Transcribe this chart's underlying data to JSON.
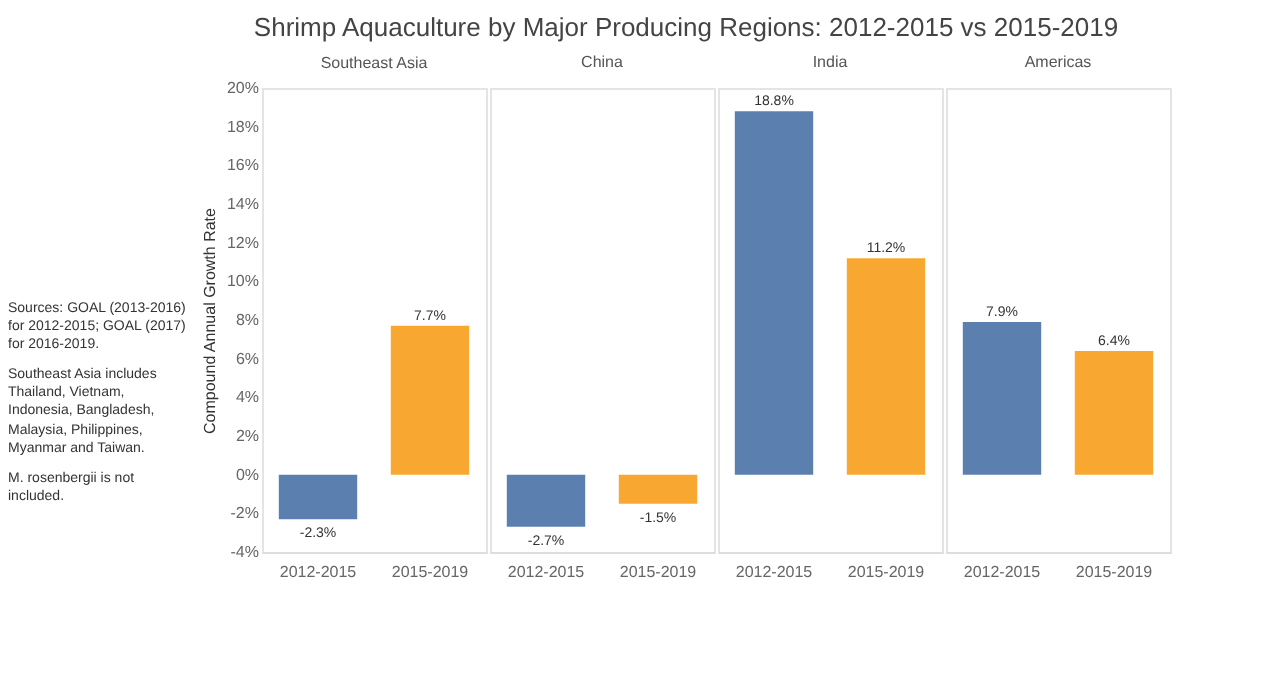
{
  "chart_data": [
    {
      "type": "bar",
      "title": "Shrimp Aquaculture by Major Producing Regions: 2012-2015 vs 2015-2019",
      "subtitle": "Southeast Asia",
      "ylabel": "Compound Annual Growth Rate",
      "annotations": [
        "Sources: GOAL (2013-2016) for 2012-2015; GOAL (2017) for 2016-2019.",
        "Southeast Asia includes Thailand, Vietnam, Indonesia, Bangladesh, Malaysia, Philippines, Myanmar and Taiwan.",
        "M. rosenbergii is not included."
      ],
      "categories": [
        "2012-2015",
        "2015-2019"
      ],
      "values": [
        -2.3,
        7.7
      ],
      "colors": [
        "#5b7fae",
        "#f8a830"
      ],
      "value_labels": [
        "-2.3%",
        "7.7%"
      ],
      "ylim": [
        -4,
        20
      ],
      "yticks": [
        {
          "value": -4,
          "label": "-4%"
        },
        {
          "value": -2,
          "label": "-2%"
        },
        {
          "value": 0,
          "label": "0%"
        },
        {
          "value": 2,
          "label": "2%"
        },
        {
          "value": 4,
          "label": "4%"
        },
        {
          "value": 6,
          "label": "6%"
        },
        {
          "value": 8,
          "label": "8%"
        },
        {
          "value": 10,
          "label": "10%"
        },
        {
          "value": 12,
          "label": "12%"
        },
        {
          "value": 14,
          "label": "14%"
        },
        {
          "value": 16,
          "label": "16%"
        },
        {
          "value": 18,
          "label": "18%"
        },
        {
          "value": 20,
          "label": "20%"
        }
      ]
    },
    {
      "type": "bar",
      "subtitle": "China",
      "categories": [
        "2012-2015",
        "2015-2019"
      ],
      "values": [
        -2.7,
        -1.5
      ],
      "colors": [
        "#5b7fae",
        "#f8a830"
      ],
      "value_labels": [
        "-2.7%",
        "-1.5%"
      ],
      "ylim": [
        -4,
        20
      ],
      "tick_labels": "x"
    },
    {
      "type": "bar",
      "subtitle": "India",
      "categories": [
        "2012-2015",
        "2015-2019"
      ],
      "values": [
        18.8,
        11.2
      ],
      "colors": [
        "#5b7fae",
        "#f8a830"
      ],
      "value_labels": [
        "18.8%",
        "11.2%"
      ],
      "ylim": [
        -4,
        20
      ],
      "tick_labels": "x"
    },
    {
      "type": "bar",
      "subtitle": "Americas",
      "categories": [
        "2012-2015",
        "2015-2019"
      ],
      "values": [
        7.9,
        6.4
      ],
      "colors": [
        "#5b7fae",
        "#f8a830"
      ],
      "value_labels": [
        "7.9%",
        "6.4%"
      ],
      "ylim": [
        -4,
        20
      ],
      "tick_labels": "x"
    }
  ]
}
